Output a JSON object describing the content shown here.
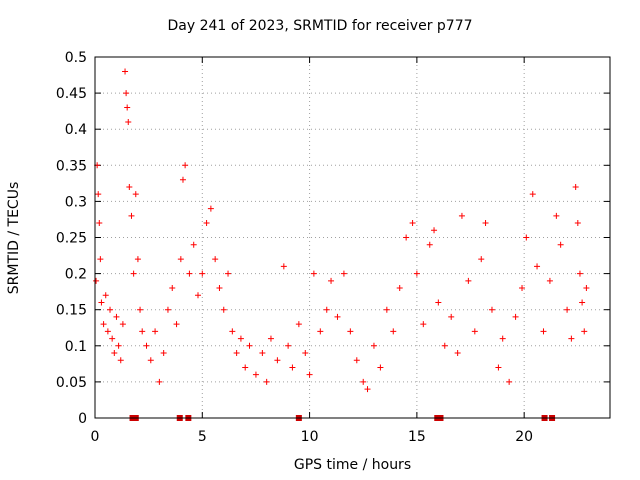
{
  "chart_data": {
    "type": "scatter",
    "title": "Day 241 of 2023, SRMTID for receiver p777",
    "xlabel": "GPS time / hours",
    "ylabel": "SRMTID / TECUs",
    "xlim": [
      0,
      24
    ],
    "ylim": [
      0,
      0.5
    ],
    "xticks": [
      0,
      5,
      10,
      15,
      20
    ],
    "yticks": [
      0,
      0.05,
      0.1,
      0.15,
      0.2,
      0.25,
      0.3,
      0.35,
      0.4,
      0.45,
      0.5
    ],
    "grid": true,
    "marker": "+",
    "series_color": "#ff0000",
    "gap_marker_color": "#cc0000",
    "points": [
      {
        "x": 0.05,
        "y": 0.19
      },
      {
        "x": 0.1,
        "y": 0.35
      },
      {
        "x": 0.15,
        "y": 0.31
      },
      {
        "x": 0.2,
        "y": 0.27
      },
      {
        "x": 0.25,
        "y": 0.22
      },
      {
        "x": 0.3,
        "y": 0.16
      },
      {
        "x": 0.4,
        "y": 0.13
      },
      {
        "x": 0.5,
        "y": 0.17
      },
      {
        "x": 0.6,
        "y": 0.12
      },
      {
        "x": 0.7,
        "y": 0.15
      },
      {
        "x": 0.8,
        "y": 0.11
      },
      {
        "x": 0.9,
        "y": 0.09
      },
      {
        "x": 1.0,
        "y": 0.14
      },
      {
        "x": 1.1,
        "y": 0.1
      },
      {
        "x": 1.2,
        "y": 0.08
      },
      {
        "x": 1.3,
        "y": 0.13
      },
      {
        "x": 1.4,
        "y": 0.48
      },
      {
        "x": 1.45,
        "y": 0.45
      },
      {
        "x": 1.5,
        "y": 0.43
      },
      {
        "x": 1.55,
        "y": 0.41
      },
      {
        "x": 1.6,
        "y": 0.32
      },
      {
        "x": 1.7,
        "y": 0.28
      },
      {
        "x": 1.8,
        "y": 0.2
      },
      {
        "x": 1.9,
        "y": 0.31
      },
      {
        "x": 2.0,
        "y": 0.22
      },
      {
        "x": 2.1,
        "y": 0.15
      },
      {
        "x": 2.2,
        "y": 0.12
      },
      {
        "x": 2.4,
        "y": 0.1
      },
      {
        "x": 2.6,
        "y": 0.08
      },
      {
        "x": 2.8,
        "y": 0.12
      },
      {
        "x": 3.0,
        "y": 0.05
      },
      {
        "x": 3.2,
        "y": 0.09
      },
      {
        "x": 3.4,
        "y": 0.15
      },
      {
        "x": 3.6,
        "y": 0.18
      },
      {
        "x": 3.8,
        "y": 0.13
      },
      {
        "x": 4.0,
        "y": 0.22
      },
      {
        "x": 4.1,
        "y": 0.33
      },
      {
        "x": 4.2,
        "y": 0.35
      },
      {
        "x": 4.4,
        "y": 0.2
      },
      {
        "x": 4.6,
        "y": 0.24
      },
      {
        "x": 4.8,
        "y": 0.17
      },
      {
        "x": 5.0,
        "y": 0.2
      },
      {
        "x": 5.2,
        "y": 0.27
      },
      {
        "x": 5.4,
        "y": 0.29
      },
      {
        "x": 5.6,
        "y": 0.22
      },
      {
        "x": 5.8,
        "y": 0.18
      },
      {
        "x": 6.0,
        "y": 0.15
      },
      {
        "x": 6.2,
        "y": 0.2
      },
      {
        "x": 6.4,
        "y": 0.12
      },
      {
        "x": 6.6,
        "y": 0.09
      },
      {
        "x": 6.8,
        "y": 0.11
      },
      {
        "x": 7.0,
        "y": 0.07
      },
      {
        "x": 7.2,
        "y": 0.1
      },
      {
        "x": 7.5,
        "y": 0.06
      },
      {
        "x": 7.8,
        "y": 0.09
      },
      {
        "x": 8.0,
        "y": 0.05
      },
      {
        "x": 8.2,
        "y": 0.11
      },
      {
        "x": 8.5,
        "y": 0.08
      },
      {
        "x": 8.8,
        "y": 0.21
      },
      {
        "x": 9.0,
        "y": 0.1
      },
      {
        "x": 9.2,
        "y": 0.07
      },
      {
        "x": 9.5,
        "y": 0.13
      },
      {
        "x": 9.8,
        "y": 0.09
      },
      {
        "x": 10.0,
        "y": 0.06
      },
      {
        "x": 10.2,
        "y": 0.2
      },
      {
        "x": 10.5,
        "y": 0.12
      },
      {
        "x": 10.8,
        "y": 0.15
      },
      {
        "x": 11.0,
        "y": 0.19
      },
      {
        "x": 11.3,
        "y": 0.14
      },
      {
        "x": 11.6,
        "y": 0.2
      },
      {
        "x": 11.9,
        "y": 0.12
      },
      {
        "x": 12.2,
        "y": 0.08
      },
      {
        "x": 12.5,
        "y": 0.05
      },
      {
        "x": 12.7,
        "y": 0.04
      },
      {
        "x": 13.0,
        "y": 0.1
      },
      {
        "x": 13.3,
        "y": 0.07
      },
      {
        "x": 13.6,
        "y": 0.15
      },
      {
        "x": 13.9,
        "y": 0.12
      },
      {
        "x": 14.2,
        "y": 0.18
      },
      {
        "x": 14.5,
        "y": 0.25
      },
      {
        "x": 14.8,
        "y": 0.27
      },
      {
        "x": 15.0,
        "y": 0.2
      },
      {
        "x": 15.3,
        "y": 0.13
      },
      {
        "x": 15.6,
        "y": 0.24
      },
      {
        "x": 15.8,
        "y": 0.26
      },
      {
        "x": 16.0,
        "y": 0.16
      },
      {
        "x": 16.3,
        "y": 0.1
      },
      {
        "x": 16.6,
        "y": 0.14
      },
      {
        "x": 16.9,
        "y": 0.09
      },
      {
        "x": 17.1,
        "y": 0.28
      },
      {
        "x": 17.4,
        "y": 0.19
      },
      {
        "x": 17.7,
        "y": 0.12
      },
      {
        "x": 18.0,
        "y": 0.22
      },
      {
        "x": 18.2,
        "y": 0.27
      },
      {
        "x": 18.5,
        "y": 0.15
      },
      {
        "x": 18.8,
        "y": 0.07
      },
      {
        "x": 19.0,
        "y": 0.11
      },
      {
        "x": 19.3,
        "y": 0.05
      },
      {
        "x": 19.6,
        "y": 0.14
      },
      {
        "x": 19.9,
        "y": 0.18
      },
      {
        "x": 20.1,
        "y": 0.25
      },
      {
        "x": 20.4,
        "y": 0.31
      },
      {
        "x": 20.6,
        "y": 0.21
      },
      {
        "x": 20.9,
        "y": 0.12
      },
      {
        "x": 21.2,
        "y": 0.19
      },
      {
        "x": 21.5,
        "y": 0.28
      },
      {
        "x": 21.7,
        "y": 0.24
      },
      {
        "x": 22.0,
        "y": 0.15
      },
      {
        "x": 22.2,
        "y": 0.11
      },
      {
        "x": 22.4,
        "y": 0.32
      },
      {
        "x": 22.5,
        "y": 0.27
      },
      {
        "x": 22.6,
        "y": 0.2
      },
      {
        "x": 22.7,
        "y": 0.16
      },
      {
        "x": 22.8,
        "y": 0.12
      },
      {
        "x": 22.9,
        "y": 0.18
      }
    ],
    "gap_markers": [
      1.75,
      1.9,
      3.95,
      4.35,
      9.5,
      15.95,
      16.1,
      20.95,
      21.3
    ]
  }
}
